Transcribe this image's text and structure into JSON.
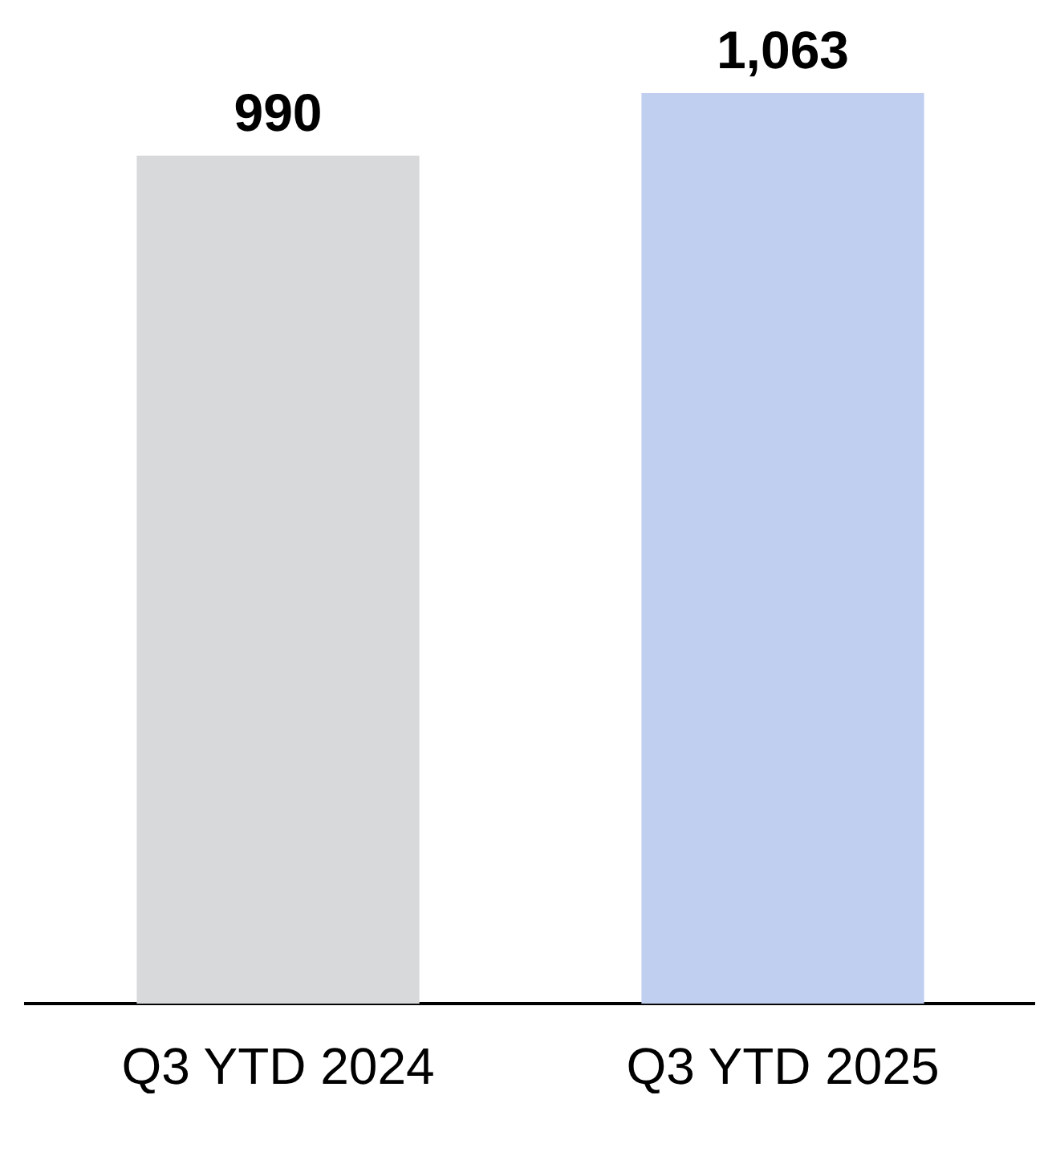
{
  "chart_data": {
    "type": "bar",
    "categories": [
      "Q3 YTD 2024",
      "Q3 YTD 2025"
    ],
    "values": [
      990,
      1063
    ],
    "colors": [
      "#d8d9da",
      "#c0cff0"
    ],
    "value_labels": [
      "990",
      "1,063"
    ],
    "relative": false,
    "grid": false,
    "legend": false,
    "tick_labels": "x"
  }
}
